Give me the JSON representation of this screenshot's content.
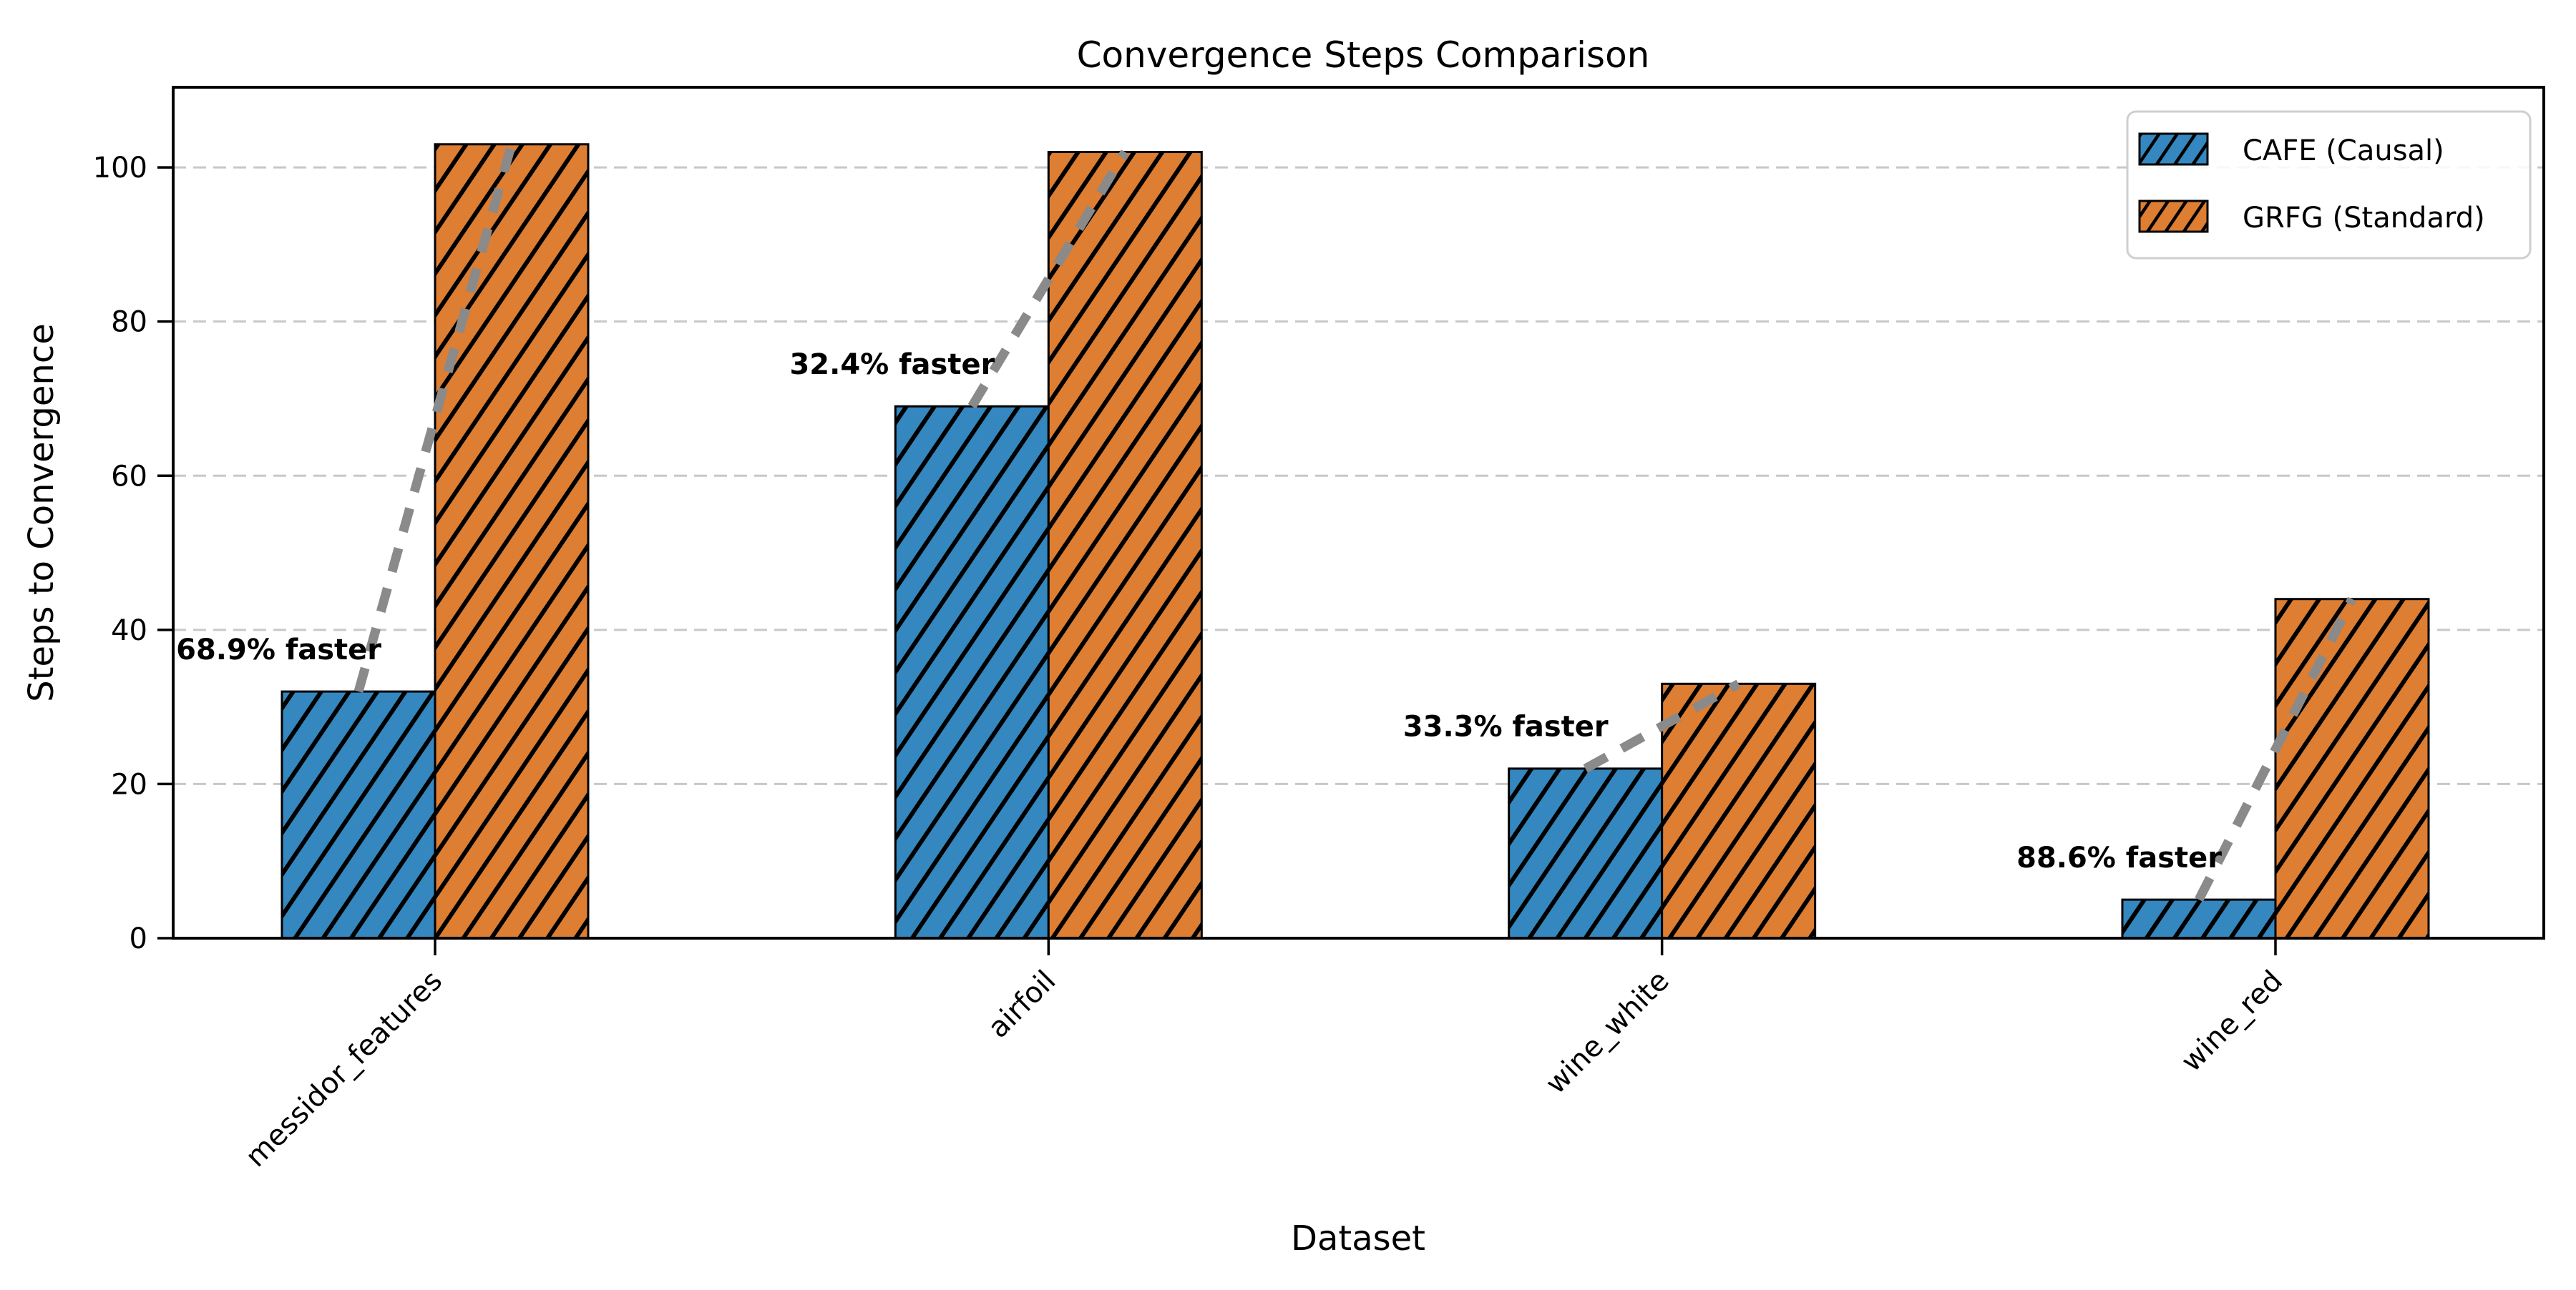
{
  "chart_data": {
    "type": "bar",
    "title": "Convergence Steps Comparison",
    "xlabel": "Dataset",
    "ylabel": "Steps to Convergence",
    "categories": [
      "messidor_features",
      "airfoil",
      "wine_white",
      "wine_red"
    ],
    "series": [
      {
        "name": "CAFE (Causal)",
        "color": "#3487BF",
        "hatch": "//",
        "values": [
          32,
          69,
          22,
          5
        ]
      },
      {
        "name": "GRFG (Standard)",
        "color": "#DD7E33",
        "hatch": "//",
        "values": [
          103,
          102,
          33,
          44
        ]
      }
    ],
    "annotations": [
      {
        "category": "messidor_features",
        "text": "68.9% faster"
      },
      {
        "category": "airfoil",
        "text": "32.4% faster"
      },
      {
        "category": "wine_white",
        "text": "33.3% faster"
      },
      {
        "category": "wine_red",
        "text": "88.6% faster"
      }
    ],
    "yticks": [
      0,
      20,
      40,
      60,
      80,
      100
    ],
    "ylim": [
      0,
      110.4
    ],
    "grid": {
      "axis": "y",
      "style": "dashed",
      "color": "#C8C8C8"
    },
    "legend": {
      "position": "upper right"
    },
    "colors": {
      "annotation_green": "#158415",
      "connector_gray": "#8A8A8A",
      "bar_edge": "#000000",
      "hatch": "#000000",
      "tick_label": "#000000"
    }
  }
}
